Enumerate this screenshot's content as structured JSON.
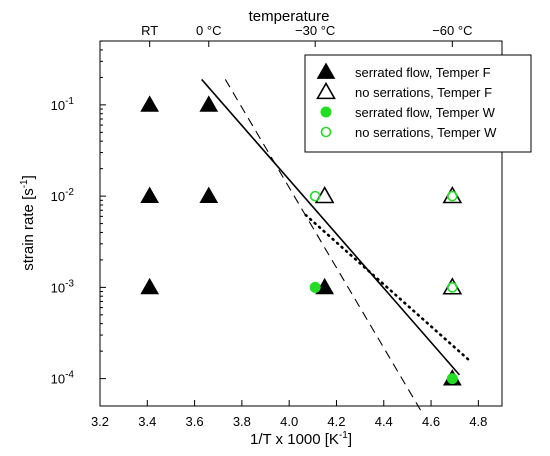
{
  "chart_data": {
    "type": "scatter",
    "xlabel": "1/T x 1000 [K",
    "xlabel_sup": "-1",
    "xlabel_end": "]",
    "ylabel": "strain rate [s",
    "ylabel_sup": "-1",
    "ylabel_end": "]",
    "top_axis_title": "temperature",
    "xlim": [
      3.2,
      4.9
    ],
    "ylim_log10": [
      -4.3,
      -0.3
    ],
    "y_scale": "log",
    "x_ticks": [
      "3.2",
      "3.4",
      "3.6",
      "3.8",
      "4.0",
      "4.2",
      "4.4",
      "4.6",
      "4.8"
    ],
    "y_ticks": [
      {
        "base": "10",
        "exp": "-1",
        "value": 0.1
      },
      {
        "base": "10",
        "exp": "-2",
        "value": 0.01
      },
      {
        "base": "10",
        "exp": "-3",
        "value": 0.001
      },
      {
        "base": "10",
        "exp": "-4",
        "value": 0.0001
      }
    ],
    "top_ticks": [
      {
        "label": "RT",
        "x": 3.41
      },
      {
        "label": "0 °C",
        "x": 3.66
      },
      {
        "label": "−30 °C",
        "x": 4.11
      },
      {
        "label": "−60 °C",
        "x": 4.69
      }
    ],
    "grid": false,
    "legend_position": "top-right",
    "series": [
      {
        "name": "serrated flow, Temper F",
        "marker": "filled-triangle",
        "color": "#000000",
        "points": [
          [
            3.41,
            0.1
          ],
          [
            3.41,
            0.01
          ],
          [
            3.41,
            0.001
          ],
          [
            3.66,
            0.1
          ],
          [
            3.66,
            0.01
          ],
          [
            4.15,
            0.001
          ],
          [
            4.69,
            0.0001
          ]
        ]
      },
      {
        "name": "no serrations, Temper F",
        "marker": "open-triangle",
        "color": "#000000",
        "points": [
          [
            4.15,
            0.01
          ],
          [
            4.69,
            0.01
          ],
          [
            4.69,
            0.001
          ]
        ]
      },
      {
        "name": "serrated flow, Temper W",
        "marker": "filled-circle",
        "color": "#22dd22",
        "points": [
          [
            4.11,
            0.001
          ],
          [
            4.69,
            0.0001
          ]
        ]
      },
      {
        "name": "no serrations, Temper W",
        "marker": "open-circle",
        "color": "#22dd22",
        "points": [
          [
            4.11,
            0.01
          ],
          [
            4.69,
            0.01
          ],
          [
            4.69,
            0.001
          ]
        ]
      }
    ],
    "fit_lines": [
      {
        "style": "solid",
        "points": [
          [
            3.63,
            0.19
          ],
          [
            4.72,
            0.00011
          ]
        ]
      },
      {
        "style": "dashed",
        "points": [
          [
            3.73,
            0.19
          ],
          [
            4.56,
            4.32e-05
          ]
        ]
      },
      {
        "style": "dotted",
        "points": [
          [
            4.07,
            0.0062
          ],
          [
            4.76,
            0.00016
          ]
        ]
      }
    ]
  }
}
